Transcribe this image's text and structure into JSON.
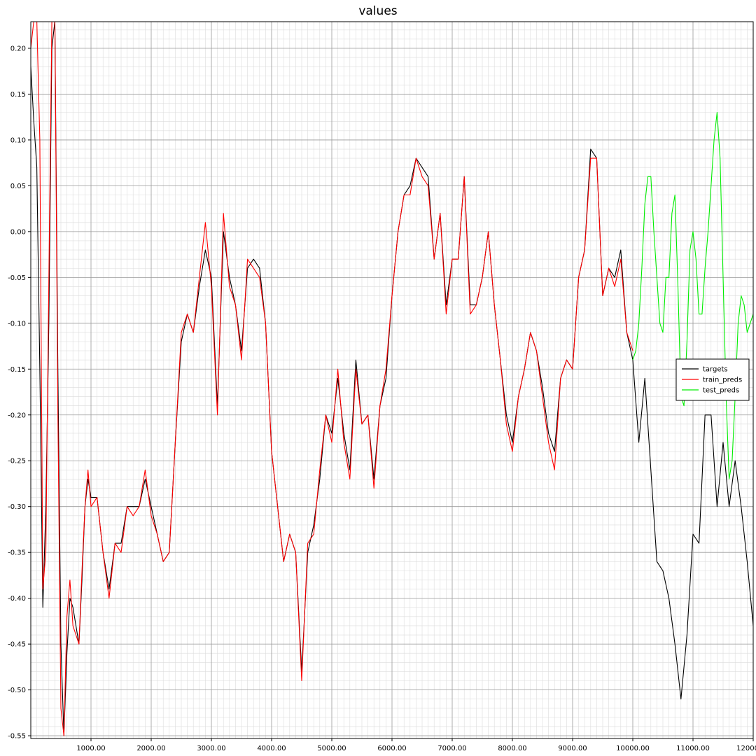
{
  "chart_data": {
    "type": "line",
    "title": "values",
    "xlabel": "",
    "ylabel": "",
    "xlim": [
      0,
      12000
    ],
    "ylim": [
      -0.553,
      0.229
    ],
    "grid": true,
    "legend_placement": "right",
    "x_tick_labels": [
      "1000.00",
      "2000.00",
      "3000.00",
      "4000.00",
      "5000.00",
      "6000.00",
      "7000.00",
      "8000.00",
      "9000.00",
      "10000.00",
      "11000.00",
      "12000.00"
    ],
    "y_tick_labels": [
      "0.20",
      "0.15",
      "0.10",
      "0.05",
      "0.00",
      "-0.05",
      "-0.10",
      "-0.15",
      "-0.20",
      "-0.25",
      "-0.30",
      "-0.35",
      "-0.40",
      "-0.45",
      "-0.50",
      "-0.55"
    ],
    "series": [
      {
        "name": "targets",
        "color": "#000000",
        "x": [
          0,
          50,
          100,
          150,
          200,
          250,
          300,
          350,
          400,
          450,
          500,
          550,
          600,
          650,
          700,
          750,
          800,
          850,
          900,
          950,
          1000,
          1100,
          1200,
          1300,
          1400,
          1500,
          1600,
          1700,
          1800,
          1900,
          2000,
          2100,
          2200,
          2300,
          2400,
          2500,
          2600,
          2700,
          2800,
          2900,
          3000,
          3100,
          3200,
          3300,
          3400,
          3500,
          3600,
          3700,
          3800,
          3900,
          4000,
          4100,
          4200,
          4300,
          4400,
          4500,
          4600,
          4700,
          4800,
          4900,
          5000,
          5100,
          5200,
          5300,
          5400,
          5500,
          5600,
          5700,
          5800,
          5900,
          6000,
          6100,
          6200,
          6300,
          6400,
          6500,
          6600,
          6700,
          6800,
          6900,
          7000,
          7100,
          7200,
          7300,
          7400,
          7500,
          7600,
          7700,
          7800,
          7900,
          8000,
          8100,
          8200,
          8300,
          8400,
          8500,
          8600,
          8700,
          8800,
          8900,
          9000,
          9100,
          9200,
          9300,
          9400,
          9500,
          9600,
          9700,
          9800,
          9900,
          10000,
          10100,
          10200,
          10300,
          10400,
          10500,
          10600,
          10700,
          10800,
          10900,
          11000,
          11100,
          11200,
          11300,
          11400,
          11500,
          11600,
          11700,
          11800,
          11900,
          12000
        ],
        "y": [
          0.18,
          0.12,
          0.07,
          -0.15,
          -0.41,
          -0.3,
          -0.1,
          0.2,
          0.23,
          -0.15,
          -0.45,
          -0.55,
          -0.46,
          -0.4,
          -0.41,
          -0.43,
          -0.45,
          -0.38,
          -0.3,
          -0.27,
          -0.29,
          -0.29,
          -0.35,
          -0.39,
          -0.34,
          -0.34,
          -0.3,
          -0.3,
          -0.3,
          -0.27,
          -0.3,
          -0.33,
          -0.36,
          -0.35,
          -0.23,
          -0.12,
          -0.09,
          -0.11,
          -0.06,
          -0.02,
          -0.05,
          -0.19,
          0.0,
          -0.05,
          -0.08,
          -0.13,
          -0.04,
          -0.03,
          -0.04,
          -0.1,
          -0.24,
          -0.3,
          -0.36,
          -0.33,
          -0.35,
          -0.48,
          -0.35,
          -0.32,
          -0.27,
          -0.2,
          -0.22,
          -0.16,
          -0.22,
          -0.26,
          -0.14,
          -0.21,
          -0.2,
          -0.27,
          -0.19,
          -0.16,
          -0.07,
          0.0,
          0.04,
          0.05,
          0.08,
          0.07,
          0.06,
          -0.03,
          0.02,
          -0.08,
          -0.03,
          -0.03,
          0.06,
          -0.08,
          -0.08,
          -0.05,
          0.0,
          -0.08,
          -0.14,
          -0.2,
          -0.23,
          -0.18,
          -0.15,
          -0.11,
          -0.13,
          -0.17,
          -0.22,
          -0.24,
          -0.16,
          -0.14,
          -0.15,
          -0.05,
          -0.02,
          0.09,
          0.08,
          -0.07,
          -0.04,
          -0.05,
          -0.02,
          -0.11,
          -0.14,
          -0.23,
          -0.16,
          -0.26,
          -0.36,
          -0.37,
          -0.4,
          -0.45,
          -0.51,
          -0.44,
          -0.33,
          -0.34,
          -0.2,
          -0.2,
          -0.3,
          -0.23,
          -0.3,
          -0.25,
          -0.3,
          -0.36,
          -0.43
        ]
      },
      {
        "name": "train_preds",
        "color": "#ff0000",
        "x": [
          0,
          50,
          100,
          150,
          200,
          250,
          300,
          350,
          400,
          450,
          500,
          550,
          600,
          650,
          700,
          750,
          800,
          850,
          900,
          950,
          1000,
          1100,
          1200,
          1300,
          1400,
          1500,
          1600,
          1700,
          1800,
          1900,
          2000,
          2100,
          2200,
          2300,
          2400,
          2500,
          2600,
          2700,
          2800,
          2900,
          3000,
          3100,
          3200,
          3300,
          3400,
          3500,
          3600,
          3700,
          3800,
          3900,
          4000,
          4100,
          4200,
          4300,
          4400,
          4500,
          4600,
          4700,
          4800,
          4900,
          5000,
          5100,
          5200,
          5300,
          5400,
          5500,
          5600,
          5700,
          5800,
          5900,
          6000,
          6100,
          6200,
          6300,
          6400,
          6500,
          6600,
          6700,
          6800,
          6900,
          7000,
          7100,
          7200,
          7300,
          7400,
          7500,
          7600,
          7700,
          7800,
          7900,
          8000,
          8100,
          8200,
          8300,
          8400,
          8500,
          8600,
          8700,
          8800,
          8900,
          9000,
          9100,
          9200,
          9300,
          9400,
          9500,
          9600,
          9700,
          9800,
          9900,
          10000
        ],
        "y": [
          0.2,
          0.23,
          0.23,
          0.1,
          -0.39,
          -0.35,
          -0.05,
          0.23,
          0.23,
          -0.2,
          -0.52,
          -0.55,
          -0.42,
          -0.38,
          -0.43,
          -0.44,
          -0.45,
          -0.37,
          -0.3,
          -0.26,
          -0.3,
          -0.29,
          -0.35,
          -0.4,
          -0.34,
          -0.35,
          -0.3,
          -0.31,
          -0.3,
          -0.26,
          -0.31,
          -0.33,
          -0.36,
          -0.35,
          -0.23,
          -0.11,
          -0.09,
          -0.11,
          -0.05,
          0.01,
          -0.06,
          -0.2,
          0.02,
          -0.06,
          -0.08,
          -0.14,
          -0.03,
          -0.04,
          -0.05,
          -0.1,
          -0.24,
          -0.3,
          -0.36,
          -0.33,
          -0.35,
          -0.49,
          -0.34,
          -0.33,
          -0.26,
          -0.2,
          -0.23,
          -0.15,
          -0.23,
          -0.27,
          -0.15,
          -0.21,
          -0.2,
          -0.28,
          -0.19,
          -0.15,
          -0.07,
          0.0,
          0.04,
          0.04,
          0.08,
          0.06,
          0.05,
          -0.03,
          0.02,
          -0.09,
          -0.03,
          -0.03,
          0.06,
          -0.09,
          -0.08,
          -0.05,
          0.0,
          -0.08,
          -0.14,
          -0.21,
          -0.24,
          -0.18,
          -0.15,
          -0.11,
          -0.13,
          -0.18,
          -0.23,
          -0.26,
          -0.16,
          -0.14,
          -0.15,
          -0.05,
          -0.02,
          0.08,
          0.08,
          -0.07,
          -0.04,
          -0.06,
          -0.03,
          -0.11,
          -0.13
        ]
      },
      {
        "name": "test_preds",
        "color": "#00ee00",
        "x": [
          10000,
          10050,
          10100,
          10150,
          10200,
          10250,
          10300,
          10350,
          10400,
          10450,
          10500,
          10550,
          10600,
          10650,
          10700,
          10750,
          10800,
          10850,
          10900,
          10950,
          11000,
          11050,
          11100,
          11150,
          11200,
          11250,
          11300,
          11350,
          11400,
          11450,
          11500,
          11550,
          11600,
          11650,
          11700,
          11750,
          11800,
          11850,
          11900,
          11950,
          12000
        ],
        "y": [
          -0.14,
          -0.13,
          -0.1,
          -0.04,
          0.03,
          0.06,
          0.06,
          0.0,
          -0.05,
          -0.1,
          -0.11,
          -0.05,
          -0.05,
          0.02,
          0.04,
          -0.06,
          -0.18,
          -0.19,
          -0.12,
          -0.02,
          0.0,
          -0.03,
          -0.09,
          -0.09,
          -0.04,
          0.0,
          0.05,
          0.1,
          0.13,
          0.08,
          -0.05,
          -0.18,
          -0.27,
          -0.25,
          -0.18,
          -0.1,
          -0.07,
          -0.08,
          -0.11,
          -0.1,
          -0.09
        ]
      }
    ]
  }
}
